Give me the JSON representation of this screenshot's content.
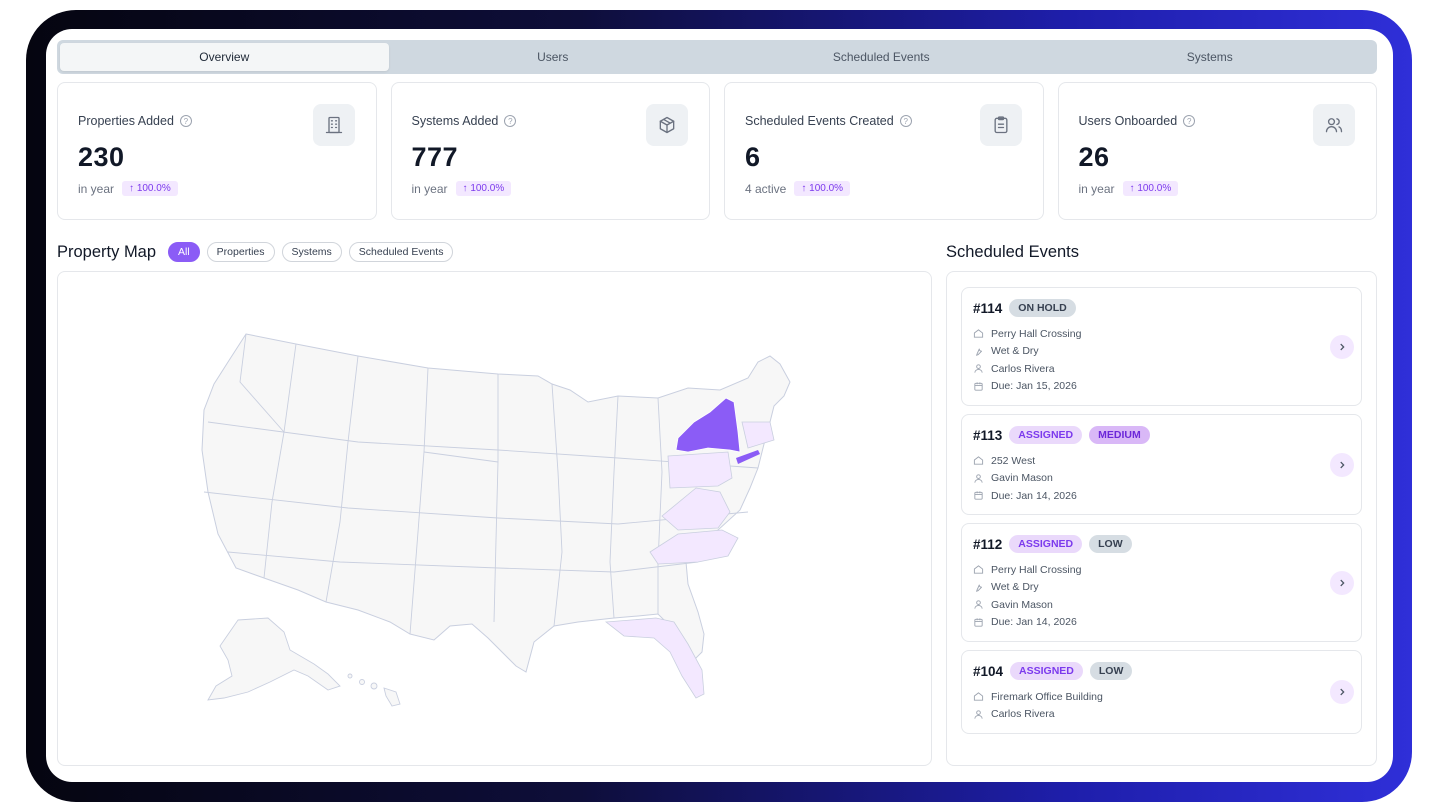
{
  "tabs": [
    "Overview",
    "Users",
    "Scheduled Events",
    "Systems"
  ],
  "active_tab": "Overview",
  "stats": [
    {
      "label": "Properties Added",
      "value": "230",
      "sub": "in year",
      "delta": "100.0%",
      "icon": "building-icon"
    },
    {
      "label": "Systems Added",
      "value": "777",
      "sub": "in year",
      "delta": "100.0%",
      "icon": "box-icon"
    },
    {
      "label": "Scheduled Events Created",
      "value": "6",
      "sub": "4 active",
      "delta": "100.0%",
      "icon": "clipboard-icon"
    },
    {
      "label": "Users Onboarded",
      "value": "26",
      "sub": "in year",
      "delta": "100.0%",
      "icon": "users-icon"
    }
  ],
  "map": {
    "title": "Property Map",
    "filters": [
      "All",
      "Properties",
      "Systems",
      "Scheduled Events"
    ],
    "active_filter": "All",
    "highlight_colors": {
      "strong": "#8b5cf6",
      "light": "#f3e8ff",
      "base": "#f7f7f7"
    }
  },
  "events": {
    "title": "Scheduled Events",
    "items": [
      {
        "id": "#114",
        "badges": [
          {
            "text": "ON HOLD",
            "kind": "hold"
          }
        ],
        "details": [
          {
            "icon": "home-icon",
            "text": "Perry Hall Crossing"
          },
          {
            "icon": "wrench-icon",
            "text": "Wet & Dry"
          },
          {
            "icon": "user-icon",
            "text": "Carlos Rivera"
          },
          {
            "icon": "calendar-icon",
            "text": "Due: Jan 15, 2026"
          }
        ]
      },
      {
        "id": "#113",
        "badges": [
          {
            "text": "ASSIGNED",
            "kind": "assigned"
          },
          {
            "text": "MEDIUM",
            "kind": "medium"
          }
        ],
        "details": [
          {
            "icon": "home-icon",
            "text": "252 West"
          },
          {
            "icon": "user-icon",
            "text": "Gavin Mason"
          },
          {
            "icon": "calendar-icon",
            "text": "Due: Jan 14, 2026"
          }
        ]
      },
      {
        "id": "#112",
        "badges": [
          {
            "text": "ASSIGNED",
            "kind": "assigned"
          },
          {
            "text": "LOW",
            "kind": "low"
          }
        ],
        "details": [
          {
            "icon": "home-icon",
            "text": "Perry Hall Crossing"
          },
          {
            "icon": "wrench-icon",
            "text": "Wet & Dry"
          },
          {
            "icon": "user-icon",
            "text": "Gavin Mason"
          },
          {
            "icon": "calendar-icon",
            "text": "Due: Jan 14, 2026"
          }
        ]
      },
      {
        "id": "#104",
        "badges": [
          {
            "text": "ASSIGNED",
            "kind": "assigned"
          },
          {
            "text": "LOW",
            "kind": "low"
          }
        ],
        "details": [
          {
            "icon": "home-icon",
            "text": "Firemark Office Building"
          },
          {
            "icon": "user-icon",
            "text": "Carlos Rivera"
          }
        ]
      }
    ]
  }
}
